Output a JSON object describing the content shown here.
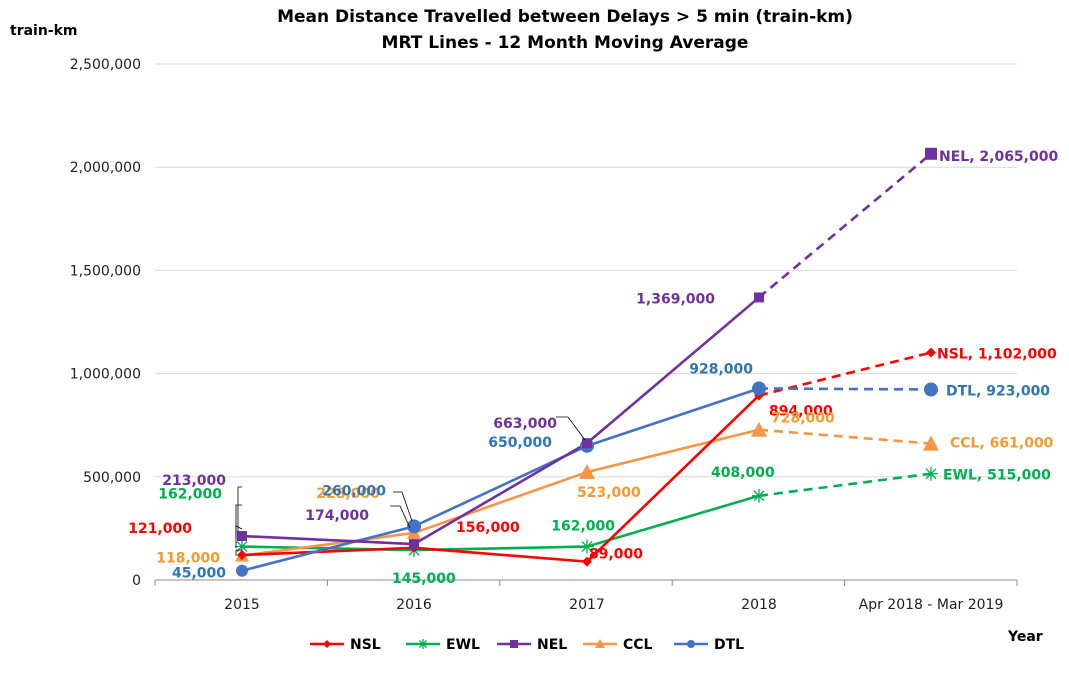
{
  "chart_data": {
    "type": "line",
    "title": "Mean Distance Travelled between Delays > 5 min (train-km)",
    "subtitle": "MRT Lines - 12 Month Moving Average",
    "ylabel": "train-km",
    "xlabel": "Year",
    "categories": [
      "2015",
      "2016",
      "2017",
      "2018",
      "Apr 2018 - Mar 2019"
    ],
    "ylim": [
      0,
      2500000
    ],
    "y_ticks": [
      "0",
      "500,000",
      "1,000,000",
      "1,500,000",
      "2,000,000",
      "2,500,000"
    ],
    "grid": "horizontal",
    "legend_position": "bottom",
    "series": [
      {
        "name": "NSL",
        "color": "#FF0000",
        "marker": "diamond",
        "values": [
          121000,
          156000,
          89000,
          894000,
          1102000
        ],
        "labels": [
          "121,000",
          "156,000",
          "89,000",
          "894,000",
          "NSL, 1,102,000"
        ]
      },
      {
        "name": "EWL",
        "color": "#00B050",
        "marker": "star",
        "values": [
          162000,
          145000,
          162000,
          408000,
          515000
        ],
        "labels": [
          "162,000",
          "145,000",
          "162,000",
          "408,000",
          "EWL, 515,000"
        ]
      },
      {
        "name": "NEL",
        "color": "#7030A0",
        "marker": "square",
        "values": [
          213000,
          174000,
          663000,
          1369000,
          2065000
        ],
        "labels": [
          "213,000",
          "174,000",
          "663,000",
          "1,369,000",
          "NEL, 2,065,000"
        ]
      },
      {
        "name": "CCL",
        "color": "#F79646",
        "label_color": "#F59A2E",
        "marker": "triangle",
        "values": [
          118000,
          228000,
          523000,
          728000,
          661000
        ],
        "labels": [
          "118,000",
          "228,000",
          "523,000",
          "728,000",
          "CCL, 661,000"
        ]
      },
      {
        "name": "DTL",
        "color": "#4472C4",
        "label_color": "#2E75B6",
        "marker": "circle",
        "values": [
          45000,
          260000,
          650000,
          928000,
          923000
        ],
        "labels": [
          "45,000",
          "260,000",
          "650,000",
          "928,000",
          "DTL, 923,000"
        ]
      }
    ],
    "projection_segment": "dashed from 2018 to Apr 2018 - Mar 2019"
  }
}
